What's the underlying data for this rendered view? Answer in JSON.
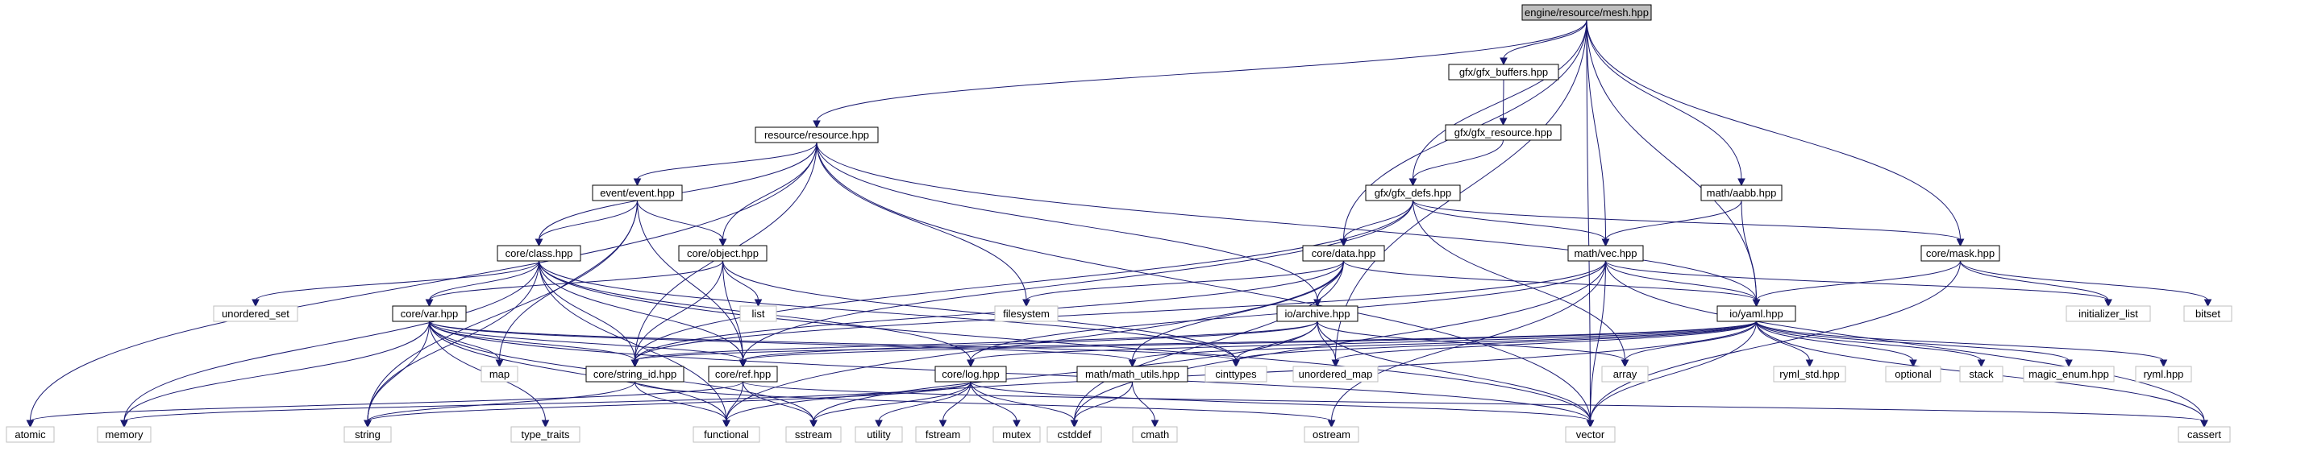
{
  "root": "engine/resource/mesh.hpp",
  "nodes": {
    "mesh": {
      "label": "engine/resource/mesh.hpp",
      "kind": "root"
    },
    "resource": {
      "label": "resource/resource.hpp",
      "kind": "local"
    },
    "gfx_buffers": {
      "label": "gfx/gfx_buffers.hpp",
      "kind": "local"
    },
    "gfx_resource": {
      "label": "gfx/gfx_resource.hpp",
      "kind": "local"
    },
    "gfx_defs": {
      "label": "gfx/gfx_defs.hpp",
      "kind": "local"
    },
    "aabb": {
      "label": "math/aabb.hpp",
      "kind": "local"
    },
    "event": {
      "label": "event/event.hpp",
      "kind": "local"
    },
    "class": {
      "label": "core/class.hpp",
      "kind": "local"
    },
    "object": {
      "label": "core/object.hpp",
      "kind": "local"
    },
    "data": {
      "label": "core/data.hpp",
      "kind": "local"
    },
    "vec": {
      "label": "math/vec.hpp",
      "kind": "local"
    },
    "mask": {
      "label": "core/mask.hpp",
      "kind": "local"
    },
    "var": {
      "label": "core/var.hpp",
      "kind": "local"
    },
    "archive": {
      "label": "io/archive.hpp",
      "kind": "local"
    },
    "yaml": {
      "label": "io/yaml.hpp",
      "kind": "local"
    },
    "string_id": {
      "label": "core/string_id.hpp",
      "kind": "local"
    },
    "ref": {
      "label": "core/ref.hpp",
      "kind": "local"
    },
    "log": {
      "label": "core/log.hpp",
      "kind": "local"
    },
    "math_utils": {
      "label": "math/math_utils.hpp",
      "kind": "local"
    },
    "unordered_set": {
      "label": "unordered_set",
      "kind": "system"
    },
    "list": {
      "label": "list",
      "kind": "system"
    },
    "filesystem": {
      "label": "filesystem",
      "kind": "system"
    },
    "initializer_list": {
      "label": "initializer_list",
      "kind": "system"
    },
    "bitset": {
      "label": "bitset",
      "kind": "system"
    },
    "map": {
      "label": "map",
      "kind": "system"
    },
    "cinttypes": {
      "label": "cinttypes",
      "kind": "system"
    },
    "unordered_map": {
      "label": "unordered_map",
      "kind": "system"
    },
    "array": {
      "label": "array",
      "kind": "system"
    },
    "ryml_std": {
      "label": "ryml_std.hpp",
      "kind": "system"
    },
    "optional": {
      "label": "optional",
      "kind": "system"
    },
    "stack": {
      "label": "stack",
      "kind": "system"
    },
    "magic_enum": {
      "label": "magic_enum.hpp",
      "kind": "system"
    },
    "ryml": {
      "label": "ryml.hpp",
      "kind": "system"
    },
    "atomic": {
      "label": "atomic",
      "kind": "system"
    },
    "memory": {
      "label": "memory",
      "kind": "system"
    },
    "string": {
      "label": "string",
      "kind": "system"
    },
    "type_traits": {
      "label": "type_traits",
      "kind": "system"
    },
    "functional": {
      "label": "functional",
      "kind": "system"
    },
    "sstream": {
      "label": "sstream",
      "kind": "system"
    },
    "utility": {
      "label": "utility",
      "kind": "system"
    },
    "fstream": {
      "label": "fstream",
      "kind": "system"
    },
    "mutex": {
      "label": "mutex",
      "kind": "system"
    },
    "cstddef": {
      "label": "cstddef",
      "kind": "system"
    },
    "cmath": {
      "label": "cmath",
      "kind": "system"
    },
    "ostream": {
      "label": "ostream",
      "kind": "system"
    },
    "vector": {
      "label": "vector",
      "kind": "system"
    },
    "cassert": {
      "label": "cassert",
      "kind": "system"
    }
  },
  "edges": [
    [
      "mesh",
      "resource"
    ],
    [
      "mesh",
      "gfx_buffers"
    ],
    [
      "mesh",
      "gfx_defs"
    ],
    [
      "mesh",
      "data"
    ],
    [
      "mesh",
      "unordered_map"
    ],
    [
      "mesh",
      "vec"
    ],
    [
      "mesh",
      "aabb"
    ],
    [
      "mesh",
      "yaml"
    ],
    [
      "mesh",
      "mask"
    ],
    [
      "mesh",
      "vector"
    ],
    [
      "gfx_buffers",
      "gfx_resource"
    ],
    [
      "gfx_resource",
      "gfx_defs"
    ],
    [
      "resource",
      "atomic"
    ],
    [
      "resource",
      "event"
    ],
    [
      "resource",
      "class"
    ],
    [
      "resource",
      "object"
    ],
    [
      "resource",
      "string_id"
    ],
    [
      "resource",
      "filesystem"
    ],
    [
      "resource",
      "archive"
    ],
    [
      "resource",
      "yaml"
    ],
    [
      "resource",
      "vector"
    ],
    [
      "event",
      "class"
    ],
    [
      "event",
      "object"
    ],
    [
      "event",
      "ref"
    ],
    [
      "event",
      "map"
    ],
    [
      "event",
      "string"
    ],
    [
      "object",
      "var"
    ],
    [
      "object",
      "list"
    ],
    [
      "object",
      "ref"
    ],
    [
      "object",
      "string_id"
    ],
    [
      "object",
      "cinttypes"
    ],
    [
      "class",
      "unordered_set"
    ],
    [
      "class",
      "var"
    ],
    [
      "class",
      "memory"
    ],
    [
      "class",
      "string"
    ],
    [
      "class",
      "functional"
    ],
    [
      "class",
      "string_id"
    ],
    [
      "class",
      "ref"
    ],
    [
      "class",
      "log"
    ],
    [
      "class",
      "cinttypes"
    ],
    [
      "class",
      "vector"
    ],
    [
      "var",
      "map"
    ],
    [
      "var",
      "string_id"
    ],
    [
      "var",
      "ref"
    ],
    [
      "var",
      "math_utils"
    ],
    [
      "var",
      "memory"
    ],
    [
      "var",
      "string"
    ],
    [
      "var",
      "type_traits"
    ],
    [
      "var",
      "functional"
    ],
    [
      "var",
      "sstream"
    ],
    [
      "var",
      "cinttypes"
    ],
    [
      "var",
      "vector"
    ],
    [
      "gfx_defs",
      "data"
    ],
    [
      "gfx_defs",
      "vec"
    ],
    [
      "gfx_defs",
      "mask"
    ],
    [
      "gfx_defs",
      "string_id"
    ],
    [
      "gfx_defs",
      "ref"
    ],
    [
      "gfx_defs",
      "array"
    ],
    [
      "data",
      "filesystem"
    ],
    [
      "data",
      "archive"
    ],
    [
      "data",
      "yaml"
    ],
    [
      "data",
      "string_id"
    ],
    [
      "data",
      "math_utils"
    ],
    [
      "data",
      "functional"
    ],
    [
      "data",
      "cstddef"
    ],
    [
      "vec",
      "yaml"
    ],
    [
      "vec",
      "initializer_list"
    ],
    [
      "vec",
      "string_id"
    ],
    [
      "vec",
      "log"
    ],
    [
      "vec",
      "cstddef"
    ],
    [
      "vec",
      "ostream"
    ],
    [
      "vec",
      "vector"
    ],
    [
      "vec",
      "cassert"
    ],
    [
      "aabb",
      "vec"
    ],
    [
      "aabb",
      "yaml"
    ],
    [
      "mask",
      "yaml"
    ],
    [
      "mask",
      "initializer_list"
    ],
    [
      "mask",
      "bitset"
    ],
    [
      "mask",
      "vector"
    ],
    [
      "archive",
      "string_id"
    ],
    [
      "archive",
      "ref"
    ],
    [
      "archive",
      "unordered_map"
    ],
    [
      "archive",
      "cinttypes"
    ],
    [
      "archive",
      "array"
    ],
    [
      "archive",
      "vector"
    ],
    [
      "archive",
      "sstream"
    ],
    [
      "yaml",
      "string_id"
    ],
    [
      "yaml",
      "ref"
    ],
    [
      "yaml",
      "log"
    ],
    [
      "yaml",
      "math_utils"
    ],
    [
      "yaml",
      "cinttypes"
    ],
    [
      "yaml",
      "unordered_map"
    ],
    [
      "yaml",
      "array"
    ],
    [
      "yaml",
      "ryml_std"
    ],
    [
      "yaml",
      "optional"
    ],
    [
      "yaml",
      "stack"
    ],
    [
      "yaml",
      "magic_enum"
    ],
    [
      "yaml",
      "ryml"
    ],
    [
      "yaml",
      "vector"
    ],
    [
      "yaml",
      "cassert"
    ],
    [
      "yaml",
      "functional"
    ],
    [
      "string_id",
      "string"
    ],
    [
      "string_id",
      "functional"
    ],
    [
      "string_id",
      "ostream"
    ],
    [
      "ref",
      "functional"
    ],
    [
      "ref",
      "sstream"
    ],
    [
      "ref",
      "cassert"
    ],
    [
      "ref",
      "atomic"
    ],
    [
      "log",
      "memory"
    ],
    [
      "log",
      "string"
    ],
    [
      "log",
      "sstream"
    ],
    [
      "log",
      "utility"
    ],
    [
      "log",
      "fstream"
    ],
    [
      "log",
      "mutex"
    ],
    [
      "log",
      "cstddef"
    ],
    [
      "log",
      "vector"
    ],
    [
      "math_utils",
      "cmath"
    ],
    [
      "math_utils",
      "cstddef"
    ]
  ]
}
